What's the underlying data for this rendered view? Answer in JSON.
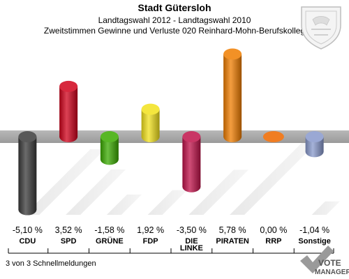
{
  "header": {
    "title": "Stadt Gütersloh",
    "subtitle": "Landtagswahl 2012 - Landtagswahl 2010",
    "subtitle2": "Zweitstimmen Gewinne und Verluste 020 Reinhard-Mohn-Berufskolleg"
  },
  "footer": {
    "note": "3 von 3 Schnellmeldungen"
  },
  "logo": {
    "text1": "VOTE",
    "text2": "MANAGER"
  },
  "chart_data": {
    "type": "bar",
    "categories": [
      "CDU",
      "SPD",
      "GRÜNE",
      "FDP",
      "DIE LINKE",
      "PIRATEN",
      "RRP",
      "Sonstige"
    ],
    "category_lines": [
      [
        "CDU"
      ],
      [
        "SPD"
      ],
      [
        "GRÜNE"
      ],
      [
        "FDP"
      ],
      [
        "DIE",
        "LINKE"
      ],
      [
        "PIRATEN"
      ],
      [
        "RRP"
      ],
      [
        "Sonstige"
      ]
    ],
    "values": [
      -5.1,
      3.52,
      -1.58,
      1.92,
      -3.5,
      5.78,
      0.0,
      -1.04
    ],
    "value_labels": [
      "-5,10 %",
      "3,52 %",
      "-1,58 %",
      "1,92 %",
      "-3,50 %",
      "5,78 %",
      "0,00 %",
      "-1,04 %"
    ],
    "colors": [
      "#3a3a3a",
      "#d0021b",
      "#3aaa00",
      "#f2e11c",
      "#c0124a",
      "#f07d00",
      "#f07d22",
      "#8899cc"
    ],
    "title": "Stadt Gütersloh",
    "ylim": [
      -6,
      7
    ],
    "grid": false,
    "legend": "none"
  }
}
